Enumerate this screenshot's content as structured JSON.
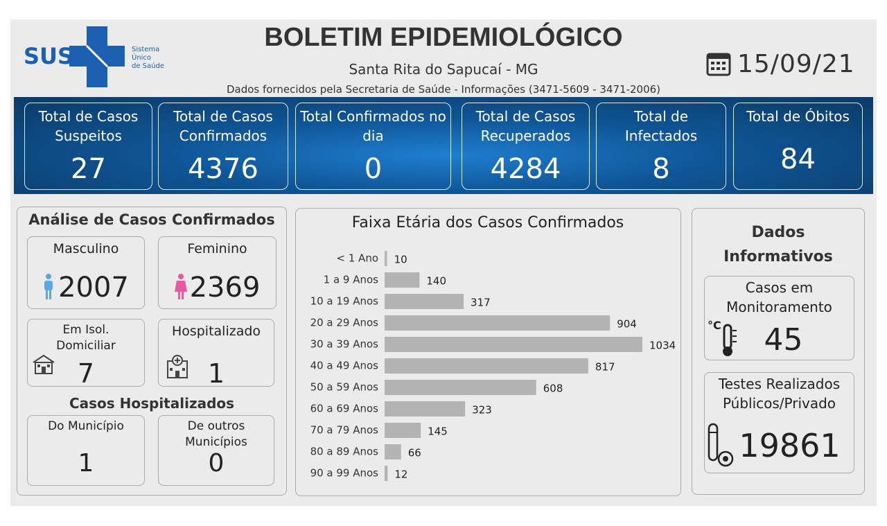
{
  "header": {
    "logo_text": "SUS",
    "logo_sub": [
      "Sistema",
      "Único",
      "de Saúde"
    ],
    "title": "BOLETIM EPIDEMIOLÓGICO",
    "subtitle": "Santa Rita do Sapucaí - MG",
    "source": "Dados fornecidos pela Secretaria de Saúde - Informações (3471-5609 - 3471-2006)",
    "date": "15/09/21"
  },
  "totals": [
    {
      "label": "Total de Casos Suspeitos",
      "value": 27
    },
    {
      "label": "Total de Casos Confirmados",
      "value": 4376
    },
    {
      "label": "Total Confirmados no dia",
      "value": 0
    },
    {
      "label": "Total de Casos Recuperados",
      "value": 4284
    },
    {
      "label": "Total de Infectados",
      "value": 8
    },
    {
      "label": "Total de Óbitos",
      "value": 84
    }
  ],
  "analysis": {
    "title": "Análise de Casos Confirmados",
    "boxes": [
      {
        "label": "Masculino",
        "value": 2007
      },
      {
        "label": "Feminino",
        "value": 2369
      },
      {
        "label": "Em Isol. Domiciliar",
        "value": 7
      },
      {
        "label": "Hospitalizado",
        "value": 1
      }
    ],
    "hospital_title": "Casos Hospitalizados",
    "hospital_boxes": [
      {
        "label": "Do Município",
        "value": 1
      },
      {
        "label": "De outros Municípios",
        "value": 0
      }
    ]
  },
  "chart_data": {
    "type": "bar",
    "orientation": "horizontal",
    "title": "Faixa Etária dos Casos Confirmados",
    "categories": [
      "< 1 Ano",
      "1 a 9 Anos",
      "10 a 19 Anos",
      "20 a 29 Anos",
      "30 a 39 Anos",
      "40 a 49 Anos",
      "50 a 59 Anos",
      "60 a 69 Anos",
      "70 a 79 Anos",
      "80 a 89 Anos",
      "90 a 99 Anos"
    ],
    "values": [
      10,
      140,
      317,
      904,
      1034,
      817,
      608,
      323,
      145,
      66,
      12
    ],
    "color": "#b3b3b3"
  },
  "info": {
    "title": "Dados Informativos",
    "boxes": [
      {
        "label": "Casos em Monitoramento",
        "value": 45
      },
      {
        "label": "Testes Realizados Públicos/Privado",
        "value": 19861
      }
    ]
  }
}
